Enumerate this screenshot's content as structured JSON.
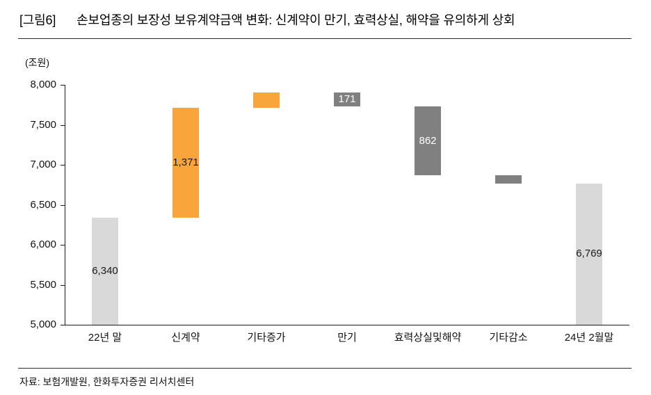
{
  "header": {
    "tag": "[그림6]",
    "title": "손보업종의 보장성 보유계약금액 변화: 신계약이 만기, 효력상실, 해약을 유의하게 상회"
  },
  "footer": {
    "source": "자료: 보험개발원, 한화투자증권 리서치센터"
  },
  "chart_data": {
    "type": "bar",
    "subtype": "waterfall",
    "unit_label": "(조원)",
    "title": "손보업종의 보장성 보유계약금액 변화",
    "xlabel": "",
    "ylabel": "(조원)",
    "ylim": [
      5000,
      8000
    ],
    "grid": false,
    "legend": false,
    "categories": [
      "22년 말",
      "신계약",
      "기타증가",
      "만기",
      "효력상실및해약",
      "기타감소",
      "24년 2월말"
    ],
    "y_axis": {
      "min": 5000,
      "max": 8000,
      "step": 500,
      "tick_labels": [
        "8,000",
        "7,500",
        "7,000",
        "6,500",
        "6,000",
        "5,500",
        "5,000"
      ]
    },
    "bars": [
      {
        "category": "22년 말",
        "type": "total",
        "from": 5000,
        "to": 6340,
        "value": 6340,
        "label": "6,340",
        "color": "#d9d9d9",
        "label_color": "#1a1a1a"
      },
      {
        "category": "신계약",
        "type": "increase",
        "from": 6340,
        "to": 7711,
        "value": 1371,
        "label": "1,371",
        "color": "#f8a63c",
        "label_color": "#1a1a1a"
      },
      {
        "category": "기타증가",
        "type": "increase",
        "from": 7711,
        "to": 7902,
        "value": 191,
        "label": "",
        "color": "#f8a63c",
        "label_color": "#1a1a1a",
        "estimated": true
      },
      {
        "category": "만기",
        "type": "decrease",
        "from": 7902,
        "to": 7731,
        "value": -171,
        "label": "171",
        "color": "#808080",
        "label_color": "#ffffff"
      },
      {
        "category": "효력상실및해약",
        "type": "decrease",
        "from": 7731,
        "to": 6869,
        "value": -862,
        "label": "862",
        "color": "#808080",
        "label_color": "#ffffff"
      },
      {
        "category": "기타감소",
        "type": "decrease",
        "from": 6869,
        "to": 6769,
        "value": -100,
        "label": "",
        "color": "#808080",
        "label_color": "#ffffff",
        "estimated": true
      },
      {
        "category": "24년 2월말",
        "type": "total",
        "from": 5000,
        "to": 6769,
        "value": 6769,
        "label": "6,769",
        "color": "#d9d9d9",
        "label_color": "#1a1a1a"
      }
    ],
    "colors": {
      "increase": "#f8a63c",
      "decrease": "#808080",
      "total": "#d9d9d9",
      "axis": "#1a1a1a"
    }
  }
}
